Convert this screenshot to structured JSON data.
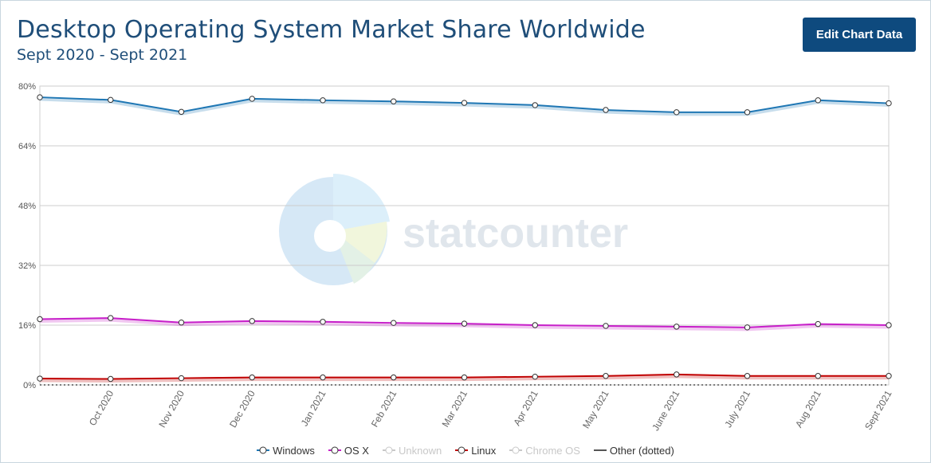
{
  "header": {
    "title": "Desktop Operating System Market Share Worldwide",
    "subtitle": "Sept 2020 - Sept 2021",
    "edit_button_label": "Edit Chart Data"
  },
  "watermark": {
    "text": "statcounter"
  },
  "legend": {
    "items": [
      {
        "label": "Windows",
        "color": "#1f77b4",
        "active": true,
        "marker": "circle"
      },
      {
        "label": "OS X",
        "color": "#c71fc9",
        "active": true,
        "marker": "circle"
      },
      {
        "label": "Unknown",
        "color": "#c8c8c8",
        "active": false,
        "marker": "circle"
      },
      {
        "label": "Linux",
        "color": "#c00000",
        "active": true,
        "marker": "circle"
      },
      {
        "label": "Chrome OS",
        "color": "#c8c8c8",
        "active": false,
        "marker": "circle"
      },
      {
        "label": "Other (dotted)",
        "color": "#555555",
        "active": true,
        "marker": "line"
      }
    ]
  },
  "chart_data": {
    "type": "line",
    "x": [
      "Sept 2020",
      "Oct 2020",
      "Nov 2020",
      "Dec 2020",
      "Jan 2021",
      "Feb 2021",
      "Mar 2021",
      "Apr 2021",
      "May 2021",
      "June 2021",
      "July 2021",
      "Aug 2021",
      "Sept 2021"
    ],
    "x_tick_labels": [
      "Oct 2020",
      "Nov 2020",
      "Dec 2020",
      "Jan 2021",
      "Feb 2021",
      "Mar 2021",
      "Apr 2021",
      "May 2021",
      "June 2021",
      "July 2021",
      "Aug 2021",
      "Sept 2021"
    ],
    "ylim": [
      0,
      80
    ],
    "y_ticks": [
      0,
      16,
      32,
      48,
      64,
      80
    ],
    "y_tick_labels": [
      "0%",
      "16%",
      "32%",
      "48%",
      "64%",
      "80%"
    ],
    "grid": true,
    "legend_position": "bottom",
    "series": [
      {
        "name": "Windows",
        "color": "#1f77b4",
        "values": [
          77.0,
          76.3,
          73.1,
          76.6,
          76.2,
          75.9,
          75.5,
          74.9,
          73.6,
          73.0,
          73.0,
          76.2,
          75.4
        ]
      },
      {
        "name": "OS X",
        "color": "#c71fc9",
        "values": [
          17.6,
          17.9,
          16.7,
          17.1,
          16.9,
          16.6,
          16.4,
          16.0,
          15.8,
          15.6,
          15.4,
          16.3,
          16.0
        ]
      },
      {
        "name": "Linux",
        "color": "#c00000",
        "values": [
          1.7,
          1.6,
          1.8,
          2.0,
          2.0,
          2.0,
          2.0,
          2.2,
          2.4,
          2.8,
          2.4,
          2.4,
          2.4
        ]
      },
      {
        "name": "Other (dotted)",
        "color": "#555555",
        "dotted": true,
        "values": [
          0,
          0,
          0,
          0,
          0,
          0,
          0,
          0,
          0,
          0,
          0,
          0,
          0
        ]
      }
    ]
  }
}
